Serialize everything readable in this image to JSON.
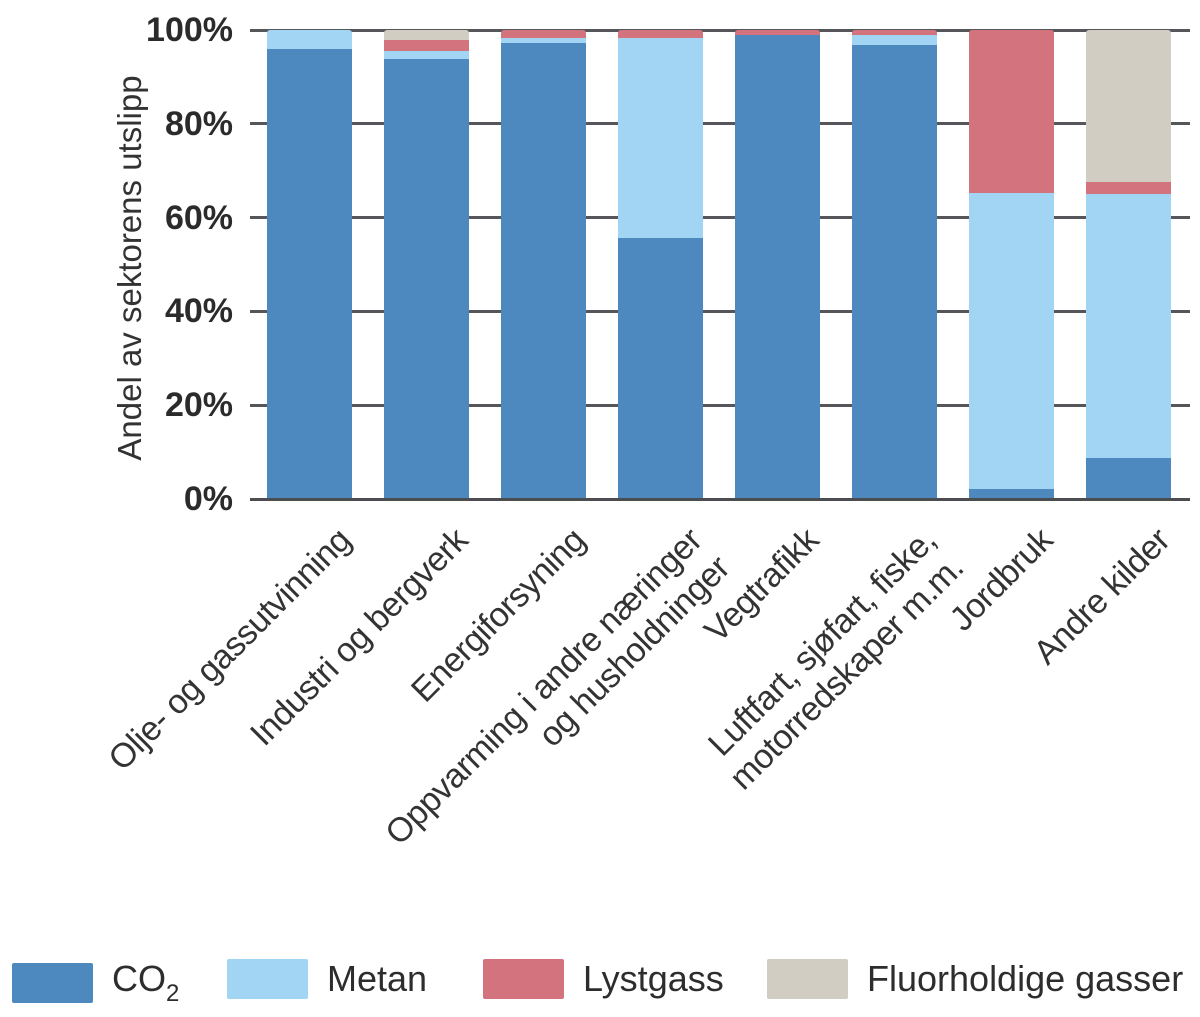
{
  "chart_data": {
    "type": "bar",
    "stacked": true,
    "orientation": "vertical",
    "title": "",
    "xlabel": "",
    "ylabel": "Andel av sektorens utslipp",
    "ylim": [
      0,
      100
    ],
    "yticks": [
      0,
      20,
      40,
      60,
      80,
      100
    ],
    "ytick_labels": [
      "0%",
      "20%",
      "40%",
      "60%",
      "80%",
      "100%"
    ],
    "grid": "horizontal",
    "legend_position": "bottom",
    "categories": [
      [
        "Olje- og gassutvinning"
      ],
      [
        "Industri og bergverk"
      ],
      [
        "Energiforsyning"
      ],
      [
        "Oppvarming i andre næringer",
        "og husholdninger"
      ],
      [
        "Vegtrafikk"
      ],
      [
        "Luftfart, sjøfart, fiske,",
        "motorredskaper m.m."
      ],
      [
        "Jordbruk"
      ],
      [
        "Andre kilder"
      ]
    ],
    "series": [
      {
        "name": "CO₂",
        "label_text": "CO",
        "label_sub": "2",
        "color": "#4d89bf",
        "values": [
          96.0,
          93.8,
          97.2,
          55.7,
          98.9,
          96.8,
          2.1,
          8.7
        ]
      },
      {
        "name": "Metan",
        "label_text": "Metan",
        "label_sub": "",
        "color": "#a2d4f3",
        "values": [
          4.0,
          1.7,
          1.1,
          42.6,
          0,
          2.1,
          63.2,
          56.4
        ]
      },
      {
        "name": "Lystgass",
        "label_text": "Lystgass",
        "label_sub": "",
        "color": "#d3737d",
        "values": [
          0,
          2.4,
          1.7,
          1.7,
          1.1,
          1.1,
          34.7,
          2.6
        ]
      },
      {
        "name": "Fluorholdige gasser",
        "label_text": "Fluorholdige gasser",
        "label_sub": "",
        "color": "#d2cdc2",
        "values": [
          0,
          2.1,
          0,
          0,
          0,
          0,
          0,
          32.3
        ]
      }
    ],
    "colors": {
      "gridline": "#55565a",
      "baseline": "#4c4d50",
      "tick_text": "#2b2b2b",
      "label_text": "#333333"
    }
  }
}
